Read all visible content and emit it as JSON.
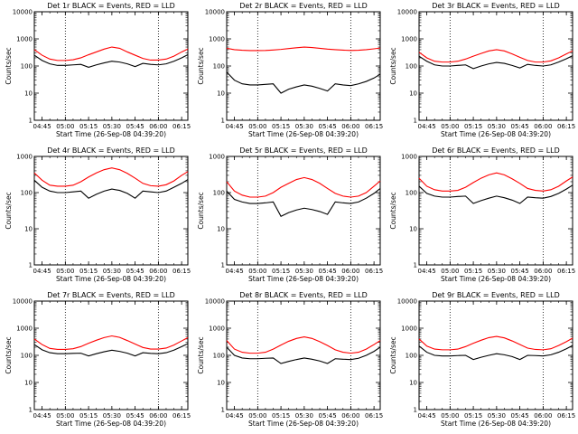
{
  "colors": {
    "events": "#000000",
    "lld": "#ff0000",
    "axis": "#000000"
  },
  "chart_data": [
    {
      "type": "line",
      "title": "Det 1r BLACK = Events, RED = LLD",
      "xlabel": "Start Time (26-Sep-08 04:39:20)",
      "ylabel": "Counts/sec",
      "y_scale": "log",
      "ylim": [
        1,
        10000
      ],
      "yticks": [
        "1",
        "10",
        "100",
        "1000",
        "10000"
      ],
      "xticks": [
        "04:45",
        "05:00",
        "05:15",
        "05:30",
        "05:45",
        "06:00",
        "06:15"
      ],
      "x": [
        "04:40",
        "04:45",
        "04:50",
        "04:55",
        "05:00",
        "05:05",
        "05:10",
        "05:15",
        "05:20",
        "05:25",
        "05:30",
        "05:35",
        "05:40",
        "05:45",
        "05:50",
        "05:55",
        "06:00",
        "06:05",
        "06:10",
        "06:15",
        "06:19"
      ],
      "dotted_lines_at": [
        "05:00",
        "06:00"
      ],
      "series": [
        {
          "name": "LLD",
          "color": "#ff0000",
          "values": [
            400,
            250,
            180,
            160,
            160,
            170,
            200,
            260,
            330,
            420,
            500,
            450,
            330,
            250,
            190,
            165,
            165,
            180,
            230,
            330,
            420
          ]
        },
        {
          "name": "Events",
          "color": "#000000",
          "values": [
            250,
            160,
            120,
            105,
            105,
            110,
            115,
            90,
            110,
            130,
            150,
            140,
            120,
            95,
            125,
            115,
            110,
            120,
            150,
            200,
            260
          ]
        }
      ]
    },
    {
      "type": "line",
      "title": "Det 2r BLACK = Events, RED = LLD",
      "xlabel": "Start Time (26-Sep-08 04:39:20)",
      "ylabel": "Counts/sec",
      "y_scale": "log",
      "ylim": [
        1,
        10000
      ],
      "yticks": [
        "1",
        "10",
        "100",
        "1000",
        "10000"
      ],
      "xticks": [
        "04:45",
        "05:00",
        "05:15",
        "05:30",
        "05:45",
        "06:00",
        "06:15"
      ],
      "x": [
        "04:40",
        "04:45",
        "04:50",
        "04:55",
        "05:00",
        "05:05",
        "05:10",
        "05:15",
        "05:20",
        "05:25",
        "05:30",
        "05:35",
        "05:40",
        "05:45",
        "05:50",
        "05:55",
        "06:00",
        "06:05",
        "06:10",
        "06:15",
        "06:19"
      ],
      "dotted_lines_at": [
        "05:00",
        "06:00"
      ],
      "series": [
        {
          "name": "LLD",
          "color": "#ff0000",
          "values": [
            450,
            400,
            380,
            370,
            370,
            375,
            390,
            410,
            440,
            470,
            500,
            480,
            450,
            420,
            400,
            385,
            375,
            380,
            400,
            430,
            460
          ]
        },
        {
          "name": "Events",
          "color": "#000000",
          "values": [
            60,
            30,
            22,
            20,
            20,
            21,
            22,
            10,
            14,
            17,
            20,
            18,
            15,
            12,
            22,
            20,
            19,
            22,
            27,
            36,
            50
          ]
        }
      ]
    },
    {
      "type": "line",
      "title": "Det 3r BLACK = Events, RED = LLD",
      "xlabel": "Start Time (26-Sep-08 04:39:20)",
      "ylabel": "Counts/sec",
      "y_scale": "log",
      "ylim": [
        1,
        10000
      ],
      "yticks": [
        "1",
        "10",
        "100",
        "1000",
        "10000"
      ],
      "xticks": [
        "04:45",
        "05:00",
        "05:15",
        "05:30",
        "05:45",
        "06:00",
        "06:15"
      ],
      "x": [
        "04:40",
        "04:45",
        "04:50",
        "04:55",
        "05:00",
        "05:05",
        "05:10",
        "05:15",
        "05:20",
        "05:25",
        "05:30",
        "05:35",
        "05:40",
        "05:45",
        "05:50",
        "05:55",
        "06:00",
        "06:05",
        "06:10",
        "06:15",
        "06:19"
      ],
      "dotted_lines_at": [
        "05:00",
        "06:00"
      ],
      "series": [
        {
          "name": "LLD",
          "color": "#ff0000",
          "values": [
            320,
            200,
            150,
            140,
            140,
            150,
            180,
            230,
            290,
            360,
            400,
            360,
            280,
            210,
            160,
            140,
            140,
            155,
            200,
            280,
            360
          ]
        },
        {
          "name": "Events",
          "color": "#000000",
          "values": [
            230,
            150,
            110,
            100,
            100,
            105,
            110,
            80,
            100,
            120,
            135,
            125,
            105,
            85,
            115,
            105,
            100,
            110,
            140,
            185,
            240
          ]
        }
      ]
    },
    {
      "type": "line",
      "title": "Det 4r BLACK = Events, RED = LLD",
      "xlabel": "Start Time (26-Sep-08 04:39:20)",
      "ylabel": "Counts/sec",
      "y_scale": "log",
      "ylim": [
        1,
        1000
      ],
      "yticks": [
        "1",
        "10",
        "100",
        "1000"
      ],
      "xticks": [
        "04:45",
        "05:00",
        "05:15",
        "05:30",
        "05:45",
        "06:00",
        "06:15"
      ],
      "x": [
        "04:40",
        "04:45",
        "04:50",
        "04:55",
        "05:00",
        "05:05",
        "05:10",
        "05:15",
        "05:20",
        "05:25",
        "05:30",
        "05:35",
        "05:40",
        "05:45",
        "05:50",
        "05:55",
        "06:00",
        "06:05",
        "06:10",
        "06:15",
        "06:19"
      ],
      "dotted_lines_at": [
        "05:00",
        "06:00"
      ],
      "series": [
        {
          "name": "LLD",
          "color": "#ff0000",
          "values": [
            350,
            220,
            160,
            150,
            150,
            160,
            200,
            270,
            350,
            430,
            480,
            430,
            340,
            250,
            180,
            155,
            150,
            165,
            210,
            300,
            380
          ]
        },
        {
          "name": "Events",
          "color": "#000000",
          "values": [
            220,
            140,
            110,
            100,
            100,
            105,
            110,
            70,
            90,
            110,
            125,
            115,
            95,
            70,
            110,
            105,
            100,
            110,
            140,
            180,
            230
          ]
        }
      ]
    },
    {
      "type": "line",
      "title": "Det 5r BLACK = Events, RED = LLD",
      "xlabel": "Start Time (26-Sep-08 04:39:20)",
      "ylabel": "Counts/sec",
      "y_scale": "log",
      "ylim": [
        1,
        1000
      ],
      "yticks": [
        "1",
        "10",
        "100",
        "1000"
      ],
      "xticks": [
        "04:45",
        "05:00",
        "05:15",
        "05:30",
        "05:45",
        "06:00",
        "06:15"
      ],
      "x": [
        "04:40",
        "04:45",
        "04:50",
        "04:55",
        "05:00",
        "05:05",
        "05:10",
        "05:15",
        "05:20",
        "05:25",
        "05:30",
        "05:35",
        "05:40",
        "05:45",
        "05:50",
        "05:55",
        "06:00",
        "06:05",
        "06:10",
        "06:15",
        "06:19"
      ],
      "dotted_lines_at": [
        "05:00",
        "06:00"
      ],
      "series": [
        {
          "name": "LLD",
          "color": "#ff0000",
          "values": [
            200,
            110,
            85,
            75,
            75,
            80,
            100,
            140,
            180,
            230,
            260,
            230,
            180,
            130,
            95,
            80,
            75,
            80,
            100,
            150,
            210
          ]
        },
        {
          "name": "Events",
          "color": "#000000",
          "values": [
            110,
            65,
            55,
            50,
            50,
            52,
            55,
            22,
            28,
            33,
            37,
            34,
            30,
            25,
            55,
            52,
            50,
            55,
            70,
            95,
            130
          ]
        }
      ]
    },
    {
      "type": "line",
      "title": "Det 6r BLACK = Events, RED = LLD",
      "xlabel": "Start Time (26-Sep-08 04:39:20)",
      "ylabel": "Counts/sec",
      "y_scale": "log",
      "ylim": [
        1,
        1000
      ],
      "yticks": [
        "1",
        "10",
        "100",
        "1000"
      ],
      "xticks": [
        "04:45",
        "05:00",
        "05:15",
        "05:30",
        "05:45",
        "06:00",
        "06:15"
      ],
      "x": [
        "04:40",
        "04:45",
        "04:50",
        "04:55",
        "05:00",
        "05:05",
        "05:10",
        "05:15",
        "05:20",
        "05:25",
        "05:30",
        "05:35",
        "05:40",
        "05:45",
        "05:50",
        "05:55",
        "06:00",
        "06:05",
        "06:10",
        "06:15",
        "06:19"
      ],
      "dotted_lines_at": [
        "05:00",
        "06:00"
      ],
      "series": [
        {
          "name": "LLD",
          "color": "#ff0000",
          "values": [
            250,
            150,
            120,
            110,
            110,
            115,
            140,
            190,
            250,
            310,
            350,
            310,
            240,
            180,
            130,
            115,
            110,
            120,
            150,
            210,
            270
          ]
        },
        {
          "name": "Events",
          "color": "#000000",
          "values": [
            150,
            95,
            80,
            75,
            75,
            78,
            80,
            50,
            60,
            70,
            80,
            72,
            62,
            50,
            75,
            72,
            70,
            78,
            95,
            125,
            160
          ]
        }
      ]
    },
    {
      "type": "line",
      "title": "Det 7r BLACK = Events, RED = LLD",
      "xlabel": "Start Time (26-Sep-08 04:39:20)",
      "ylabel": "Counts/sec",
      "y_scale": "log",
      "ylim": [
        1,
        10000
      ],
      "yticks": [
        "1",
        "10",
        "100",
        "1000",
        "10000"
      ],
      "xticks": [
        "04:45",
        "05:00",
        "05:15",
        "05:30",
        "05:45",
        "06:00",
        "06:15"
      ],
      "x": [
        "04:40",
        "04:45",
        "04:50",
        "04:55",
        "05:00",
        "05:05",
        "05:10",
        "05:15",
        "05:20",
        "05:25",
        "05:30",
        "05:35",
        "05:40",
        "05:45",
        "05:50",
        "05:55",
        "06:00",
        "06:05",
        "06:10",
        "06:15",
        "06:19"
      ],
      "dotted_lines_at": [
        "05:00",
        "06:00"
      ],
      "series": [
        {
          "name": "LLD",
          "color": "#ff0000",
          "values": [
            400,
            250,
            180,
            165,
            165,
            175,
            210,
            280,
            360,
            450,
            520,
            460,
            350,
            260,
            195,
            170,
            170,
            185,
            240,
            340,
            450
          ]
        },
        {
          "name": "Events",
          "color": "#000000",
          "values": [
            250,
            160,
            125,
            115,
            115,
            118,
            120,
            95,
            115,
            135,
            155,
            140,
            120,
            95,
            125,
            118,
            115,
            125,
            155,
            210,
            270
          ]
        }
      ]
    },
    {
      "type": "line",
      "title": "Det 8r BLACK = Events, RED = LLD",
      "xlabel": "Start Time (26-Sep-08 04:39:20)",
      "ylabel": "Counts/sec",
      "y_scale": "log",
      "ylim": [
        1,
        10000
      ],
      "yticks": [
        "1",
        "10",
        "100",
        "1000",
        "10000"
      ],
      "xticks": [
        "04:45",
        "05:00",
        "05:15",
        "05:30",
        "05:45",
        "06:00",
        "06:15"
      ],
      "x": [
        "04:40",
        "04:45",
        "04:50",
        "04:55",
        "05:00",
        "05:05",
        "05:10",
        "05:15",
        "05:20",
        "05:25",
        "05:30",
        "05:35",
        "05:40",
        "05:45",
        "05:50",
        "05:55",
        "06:00",
        "06:05",
        "06:10",
        "06:15",
        "06:19"
      ],
      "dotted_lines_at": [
        "05:00",
        "06:00"
      ],
      "series": [
        {
          "name": "LLD",
          "color": "#ff0000",
          "values": [
            350,
            170,
            130,
            120,
            120,
            130,
            170,
            240,
            330,
            420,
            480,
            420,
            320,
            230,
            160,
            130,
            120,
            130,
            170,
            250,
            350
          ]
        },
        {
          "name": "Events",
          "color": "#000000",
          "values": [
            200,
            100,
            80,
            75,
            75,
            78,
            80,
            50,
            60,
            70,
            80,
            72,
            62,
            50,
            75,
            72,
            70,
            78,
            100,
            140,
            200
          ]
        }
      ]
    },
    {
      "type": "line",
      "title": "Det 9r BLACK = Events, RED = LLD",
      "xlabel": "Start Time (26-Sep-08 04:39:20)",
      "ylabel": "Counts/sec",
      "y_scale": "log",
      "ylim": [
        1,
        10000
      ],
      "yticks": [
        "1",
        "10",
        "100",
        "1000",
        "10000"
      ],
      "xticks": [
        "04:45",
        "05:00",
        "05:15",
        "05:30",
        "05:45",
        "06:00",
        "06:15"
      ],
      "x": [
        "04:40",
        "04:45",
        "04:50",
        "04:55",
        "05:00",
        "05:05",
        "05:10",
        "05:15",
        "05:20",
        "05:25",
        "05:30",
        "05:35",
        "05:40",
        "05:45",
        "05:50",
        "05:55",
        "06:00",
        "06:05",
        "06:10",
        "06:15",
        "06:19"
      ],
      "dotted_lines_at": [
        "05:00",
        "06:00"
      ],
      "series": [
        {
          "name": "LLD",
          "color": "#ff0000",
          "values": [
            400,
            220,
            170,
            160,
            160,
            170,
            210,
            280,
            360,
            450,
            500,
            440,
            340,
            250,
            185,
            165,
            160,
            175,
            230,
            320,
            430
          ]
        },
        {
          "name": "Events",
          "color": "#000000",
          "values": [
            220,
            130,
            100,
            95,
            95,
            98,
            100,
            70,
            85,
            100,
            115,
            105,
            90,
            70,
            100,
            98,
            95,
            105,
            130,
            175,
            230
          ]
        }
      ]
    }
  ]
}
